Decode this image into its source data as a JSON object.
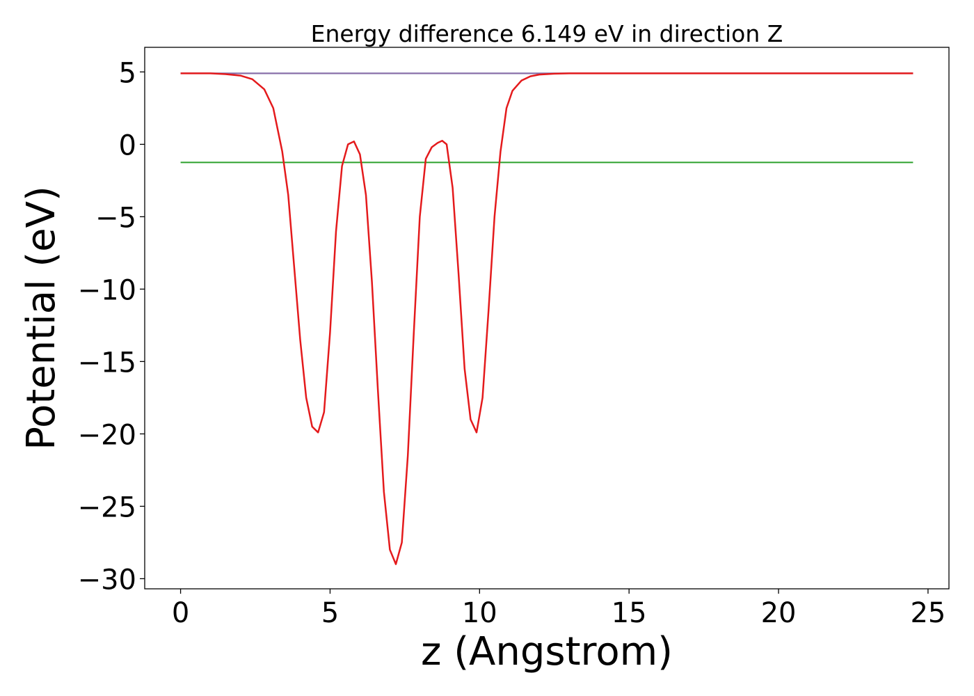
{
  "chart_data": {
    "type": "line",
    "title": "Energy difference 6.149 eV in direction Z",
    "xlabel": "z (Angstrom)",
    "ylabel": "Potential (eV)",
    "xlim": [
      -1.2,
      25.7
    ],
    "ylim": [
      -30.7,
      6.7
    ],
    "xticks": [
      0,
      5,
      10,
      15,
      20,
      25
    ],
    "yticks": [
      5,
      0,
      -5,
      -10,
      -15,
      -20,
      -25,
      -30
    ],
    "xtick_labels": [
      "0",
      "5",
      "10",
      "15",
      "20",
      "25"
    ],
    "ytick_labels": [
      "5",
      "0",
      "−5",
      "−10",
      "−15",
      "−20",
      "−25",
      "−30"
    ],
    "grid": false,
    "legend": "none",
    "series": [
      {
        "color": "#1f77b4",
        "x": [
          0,
          24.5
        ],
        "y": [
          4.9,
          4.9
        ]
      },
      {
        "color": "#2ca02c",
        "x": [
          0,
          24.5
        ],
        "y": [
          -1.25,
          -1.25
        ]
      },
      {
        "color": "#8c6ba6",
        "x": [
          0,
          24.5
        ],
        "y": [
          4.9,
          4.9
        ]
      },
      {
        "color": "#e41a1c",
        "x": [
          0,
          1.0,
          1.5,
          2.0,
          2.4,
          2.8,
          3.1,
          3.4,
          3.6,
          3.8,
          4.0,
          4.2,
          4.4,
          4.6,
          4.8,
          5.0,
          5.2,
          5.4,
          5.6,
          5.8,
          6.0,
          6.2,
          6.4,
          6.6,
          6.8,
          7.0,
          7.2,
          7.4,
          7.6,
          7.8,
          8.0,
          8.2,
          8.4,
          8.6,
          8.75,
          8.9,
          9.1,
          9.3,
          9.5,
          9.7,
          9.9,
          10.1,
          10.3,
          10.5,
          10.7,
          10.9,
          11.1,
          11.4,
          11.7,
          12.0,
          12.5,
          13.0,
          14.0,
          16.0,
          20.0,
          24.5
        ],
        "y": [
          4.9,
          4.9,
          4.85,
          4.75,
          4.5,
          3.8,
          2.5,
          -0.5,
          -3.5,
          -8.5,
          -13.5,
          -17.5,
          -19.5,
          -19.9,
          -18.5,
          -13.0,
          -6.0,
          -1.5,
          0.0,
          0.2,
          -0.7,
          -3.5,
          -9.5,
          -17.0,
          -24.0,
          -28.0,
          -29.0,
          -27.5,
          -21.5,
          -13.0,
          -5.0,
          -1.0,
          -0.2,
          0.1,
          0.25,
          0.0,
          -3.0,
          -9.0,
          -15.5,
          -19.0,
          -19.9,
          -17.5,
          -11.5,
          -5.0,
          -0.5,
          2.5,
          3.7,
          4.4,
          4.7,
          4.82,
          4.88,
          4.9,
          4.9,
          4.9,
          4.9,
          4.9
        ]
      }
    ]
  }
}
